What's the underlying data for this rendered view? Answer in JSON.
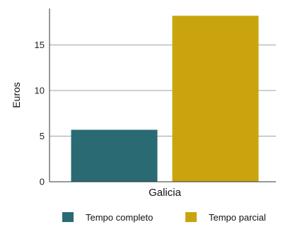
{
  "chart_data": {
    "type": "bar",
    "categories": [
      "Galicia"
    ],
    "series": [
      {
        "name": "Tempo completo",
        "values": [
          5.7
        ],
        "color": "#2a6b73"
      },
      {
        "name": "Tempo parcial",
        "values": [
          18.2
        ],
        "color": "#c9a40e"
      }
    ],
    "ylabel": "Euros",
    "xlabel": "",
    "ylim": [
      0,
      19
    ],
    "yticks": [
      0,
      5,
      10,
      15
    ],
    "grid": true,
    "legend_position": "bottom"
  }
}
